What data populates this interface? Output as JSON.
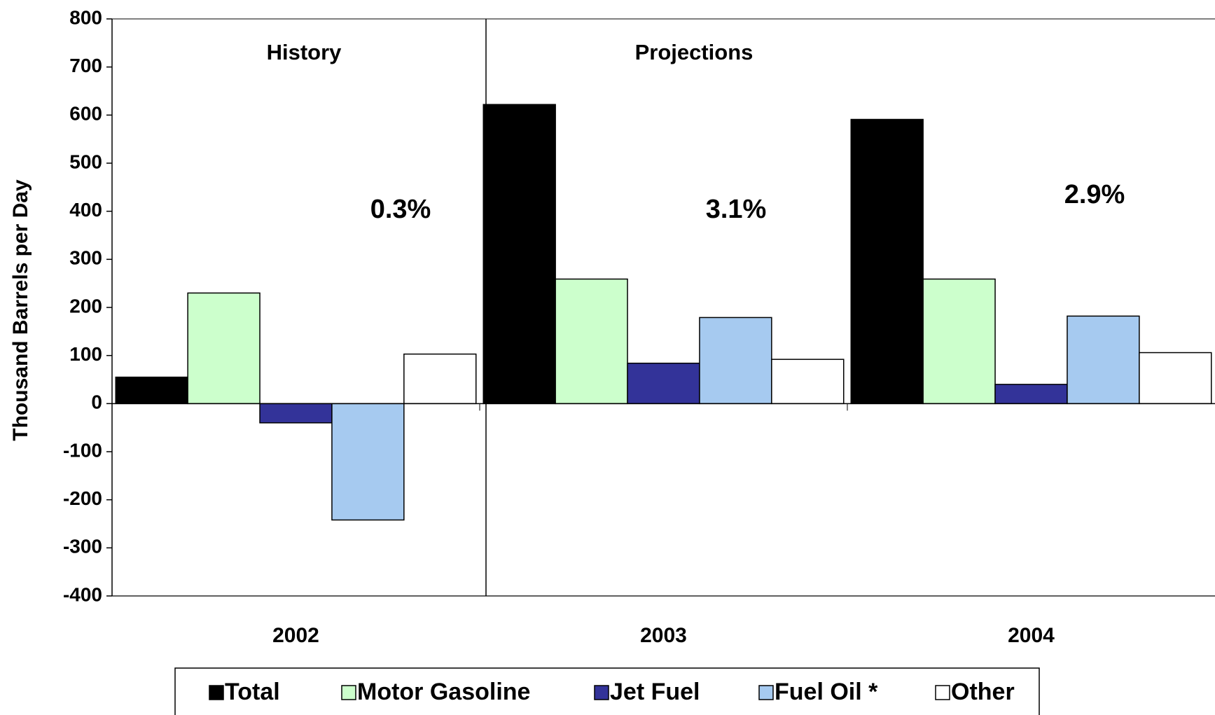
{
  "chart_data": {
    "type": "bar",
    "y_label": "Thousand Barrels per Day",
    "categories": [
      "2002",
      "2003",
      "2004"
    ],
    "series": [
      {
        "name": "Total",
        "color": "#000000",
        "values": [
          55,
          622,
          591
        ]
      },
      {
        "name": "Motor Gasoline",
        "color": "#ccffcc",
        "values": [
          230,
          259,
          259
        ]
      },
      {
        "name": "Jet Fuel",
        "color": "#333399",
        "values": [
          -40,
          84,
          40
        ]
      },
      {
        "name": "Fuel Oil *",
        "color": "#a6caf0",
        "values": [
          -242,
          179,
          182
        ]
      },
      {
        "name": "Other",
        "color": "#ffffff",
        "values": [
          103,
          92,
          106
        ]
      }
    ],
    "annotations": [
      "History",
      "Projections",
      "0.3%",
      "3.1%",
      "2.9%"
    ],
    "ylim": [
      -400,
      800
    ],
    "yticks": [
      -400,
      -300,
      -200,
      -100,
      0,
      100,
      200,
      300,
      400,
      500,
      600,
      700,
      800
    ],
    "legend": "bottom"
  }
}
